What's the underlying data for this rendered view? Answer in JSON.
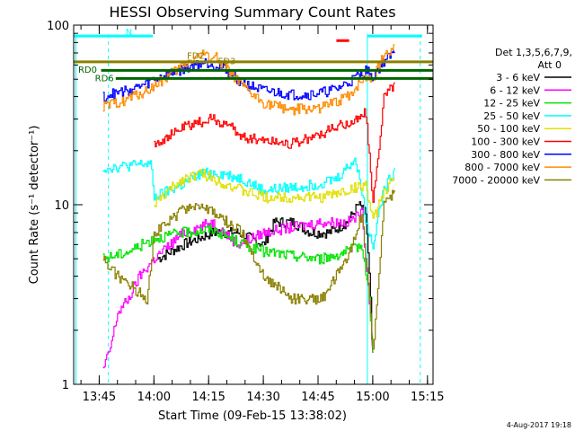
{
  "chart_data": {
    "type": "line",
    "title": "HESSI Observing Summary Count Rates",
    "xlabel": "Start Time (09-Feb-15 13:38:02)",
    "ylabel": "Count Rate (s⁻¹ detector⁻¹)",
    "yscale": "log",
    "ylim": [
      1,
      100
    ],
    "xlim_minutes": [
      -0.03,
      98.5
    ],
    "x_start": "13:38:02",
    "x_tick_labels": [
      "13:45",
      "14:00",
      "14:15",
      "14:30",
      "14:45",
      "15:00",
      "15:15"
    ],
    "x_tick_minutes": [
      6.97,
      21.97,
      36.97,
      51.97,
      66.97,
      81.97,
      96.97
    ],
    "y_tick_labels": [
      "1",
      "10",
      "100"
    ],
    "y_tick_values": [
      1,
      10,
      100
    ],
    "legend_title": [
      "Det 1,3,5,6,7,9,",
      "Att 0"
    ],
    "legend_placement": "right",
    "footer": "4-Aug-2017 19:18",
    "grid": false,
    "series": [
      {
        "name": "3 - 6 keV",
        "color": "#000000",
        "x": [
          23,
          30,
          38,
          45,
          52,
          55,
          60,
          65,
          70,
          75,
          78,
          80,
          81,
          82
        ],
        "values": [
          5,
          6,
          7,
          7,
          6,
          8,
          8,
          7,
          7,
          8,
          10,
          9,
          4,
          1.5
        ]
      },
      {
        "name": "6 - 12 keV",
        "color": "#ff00ff",
        "x": [
          8,
          10,
          12,
          15,
          18,
          22,
          30,
          38,
          45,
          52,
          60,
          68,
          75,
          79,
          81,
          82
        ],
        "values": [
          1.2,
          1.6,
          2.5,
          3,
          4,
          5,
          7,
          8,
          6,
          7,
          7.5,
          8,
          8,
          9,
          3,
          1.5
        ]
      },
      {
        "name": "12 - 25 keV",
        "color": "#00e400",
        "x": [
          8,
          15,
          22,
          30,
          38,
          45,
          52,
          60,
          68,
          75,
          79,
          81,
          82
        ],
        "values": [
          5,
          5.5,
          6.5,
          7,
          7.3,
          6.2,
          5.5,
          5.2,
          5,
          5.5,
          6,
          3,
          1.5
        ]
      },
      {
        "name": "25 - 50 keV",
        "color": "#00ffff",
        "x": [
          8,
          15,
          21,
          22,
          30,
          35,
          40,
          46,
          52,
          60,
          66,
          72,
          77,
          79,
          80,
          82,
          83,
          85,
          88
        ],
        "values": [
          16,
          16.5,
          17,
          11,
          13,
          15,
          15,
          14,
          12,
          12.5,
          13,
          14,
          18,
          12,
          8,
          6,
          8,
          12,
          16
        ]
      },
      {
        "name": "50 - 100 keV",
        "color": "#e0e000",
        "x": [
          22,
          26,
          30,
          35,
          38,
          42,
          46,
          52,
          60,
          68,
          75,
          80,
          82,
          85,
          88
        ],
        "values": [
          10,
          12,
          14,
          15,
          14,
          13,
          12,
          11,
          11,
          11,
          12,
          13,
          8,
          12,
          14
        ]
      },
      {
        "name": "100 - 300 keV",
        "color": "#ff0000",
        "x": [
          22,
          26,
          30,
          35,
          38,
          42,
          46,
          52,
          60,
          66,
          72,
          78,
          80,
          82,
          85,
          88
        ],
        "values": [
          22,
          24,
          27,
          29,
          30,
          28,
          24,
          23,
          22,
          24,
          27,
          30,
          33,
          10,
          40,
          48
        ]
      },
      {
        "name": "300 - 800 keV",
        "color": "#0000ff",
        "x": [
          8,
          12,
          16,
          20,
          22,
          26,
          30,
          33,
          36,
          39,
          42,
          45,
          48,
          52,
          56,
          60,
          64,
          68,
          72,
          76,
          80,
          82,
          85,
          88
        ],
        "values": [
          40,
          42,
          44,
          47,
          50,
          53,
          57,
          60,
          62,
          60,
          56,
          50,
          46,
          43,
          42,
          41,
          41,
          42,
          44,
          49,
          56,
          52,
          63,
          70
        ]
      },
      {
        "name": "800 - 7000 keV",
        "color": "#ff8c00",
        "x": [
          8,
          12,
          16,
          20,
          22,
          26,
          30,
          33,
          36,
          39,
          42,
          45,
          48,
          52,
          56,
          60,
          64,
          68,
          72,
          76,
          80,
          82,
          85,
          88
        ],
        "values": [
          35,
          37,
          40,
          43,
          46,
          52,
          60,
          66,
          69,
          66,
          58,
          48,
          42,
          37,
          35,
          34,
          34,
          35,
          37,
          42,
          52,
          50,
          68,
          78
        ]
      },
      {
        "name": "7000 - 20000 keV",
        "color": "#8b8000",
        "x": [
          8,
          12,
          16,
          20,
          22,
          26,
          30,
          34,
          38,
          42,
          46,
          52,
          60,
          68,
          75,
          79,
          81,
          82,
          85,
          88
        ],
        "values": [
          5,
          4,
          3.5,
          3,
          7,
          8,
          9.5,
          10,
          9,
          8,
          7,
          4,
          3,
          3,
          5,
          9,
          3,
          1.5,
          10,
          12
        ]
      }
    ],
    "annotations": [
      {
        "text": "N",
        "x": 14.2,
        "y": 92,
        "color": "#00ffff"
      },
      {
        "text": "RD0",
        "x": 1.2,
        "y": 57,
        "color": "#006400"
      },
      {
        "text": "RD6",
        "x": 5.8,
        "y": 51,
        "color": "#006400"
      },
      {
        "text": "FD2",
        "x": 31,
        "y": 68,
        "color": "#8b8000"
      },
      {
        "text": "FD3",
        "x": 39.5,
        "y": 63.5,
        "color": "#8b8000"
      }
    ],
    "overlays": {
      "night_bars": [
        {
          "color": "#00ffff",
          "from": 0,
          "to": 21.7,
          "y": 87
        },
        {
          "color": "#00ffff",
          "from": 80.5,
          "to": 95.5,
          "y": 87
        }
      ],
      "flag_bars": [
        {
          "color": "#8b8000",
          "from": 0,
          "to": 98.5,
          "y": 62.5
        },
        {
          "color": "#006400",
          "from": 7.5,
          "to": 98.5,
          "y": 56
        },
        {
          "color": "#006400",
          "from": 11.5,
          "to": 98.5,
          "y": 50.5
        },
        {
          "color": "#ff0000",
          "from": 72,
          "to": 75.5,
          "y": 82
        }
      ],
      "vertical_markers": [
        {
          "color": "#00ffff",
          "x": 0.6,
          "style": "solid"
        },
        {
          "color": "#00ffff",
          "x": 9.5,
          "style": "dashed"
        },
        {
          "color": "#00ffff",
          "x": 80.5,
          "style": "solid"
        },
        {
          "color": "#00ffff",
          "x": 95,
          "style": "dashed"
        }
      ]
    }
  }
}
